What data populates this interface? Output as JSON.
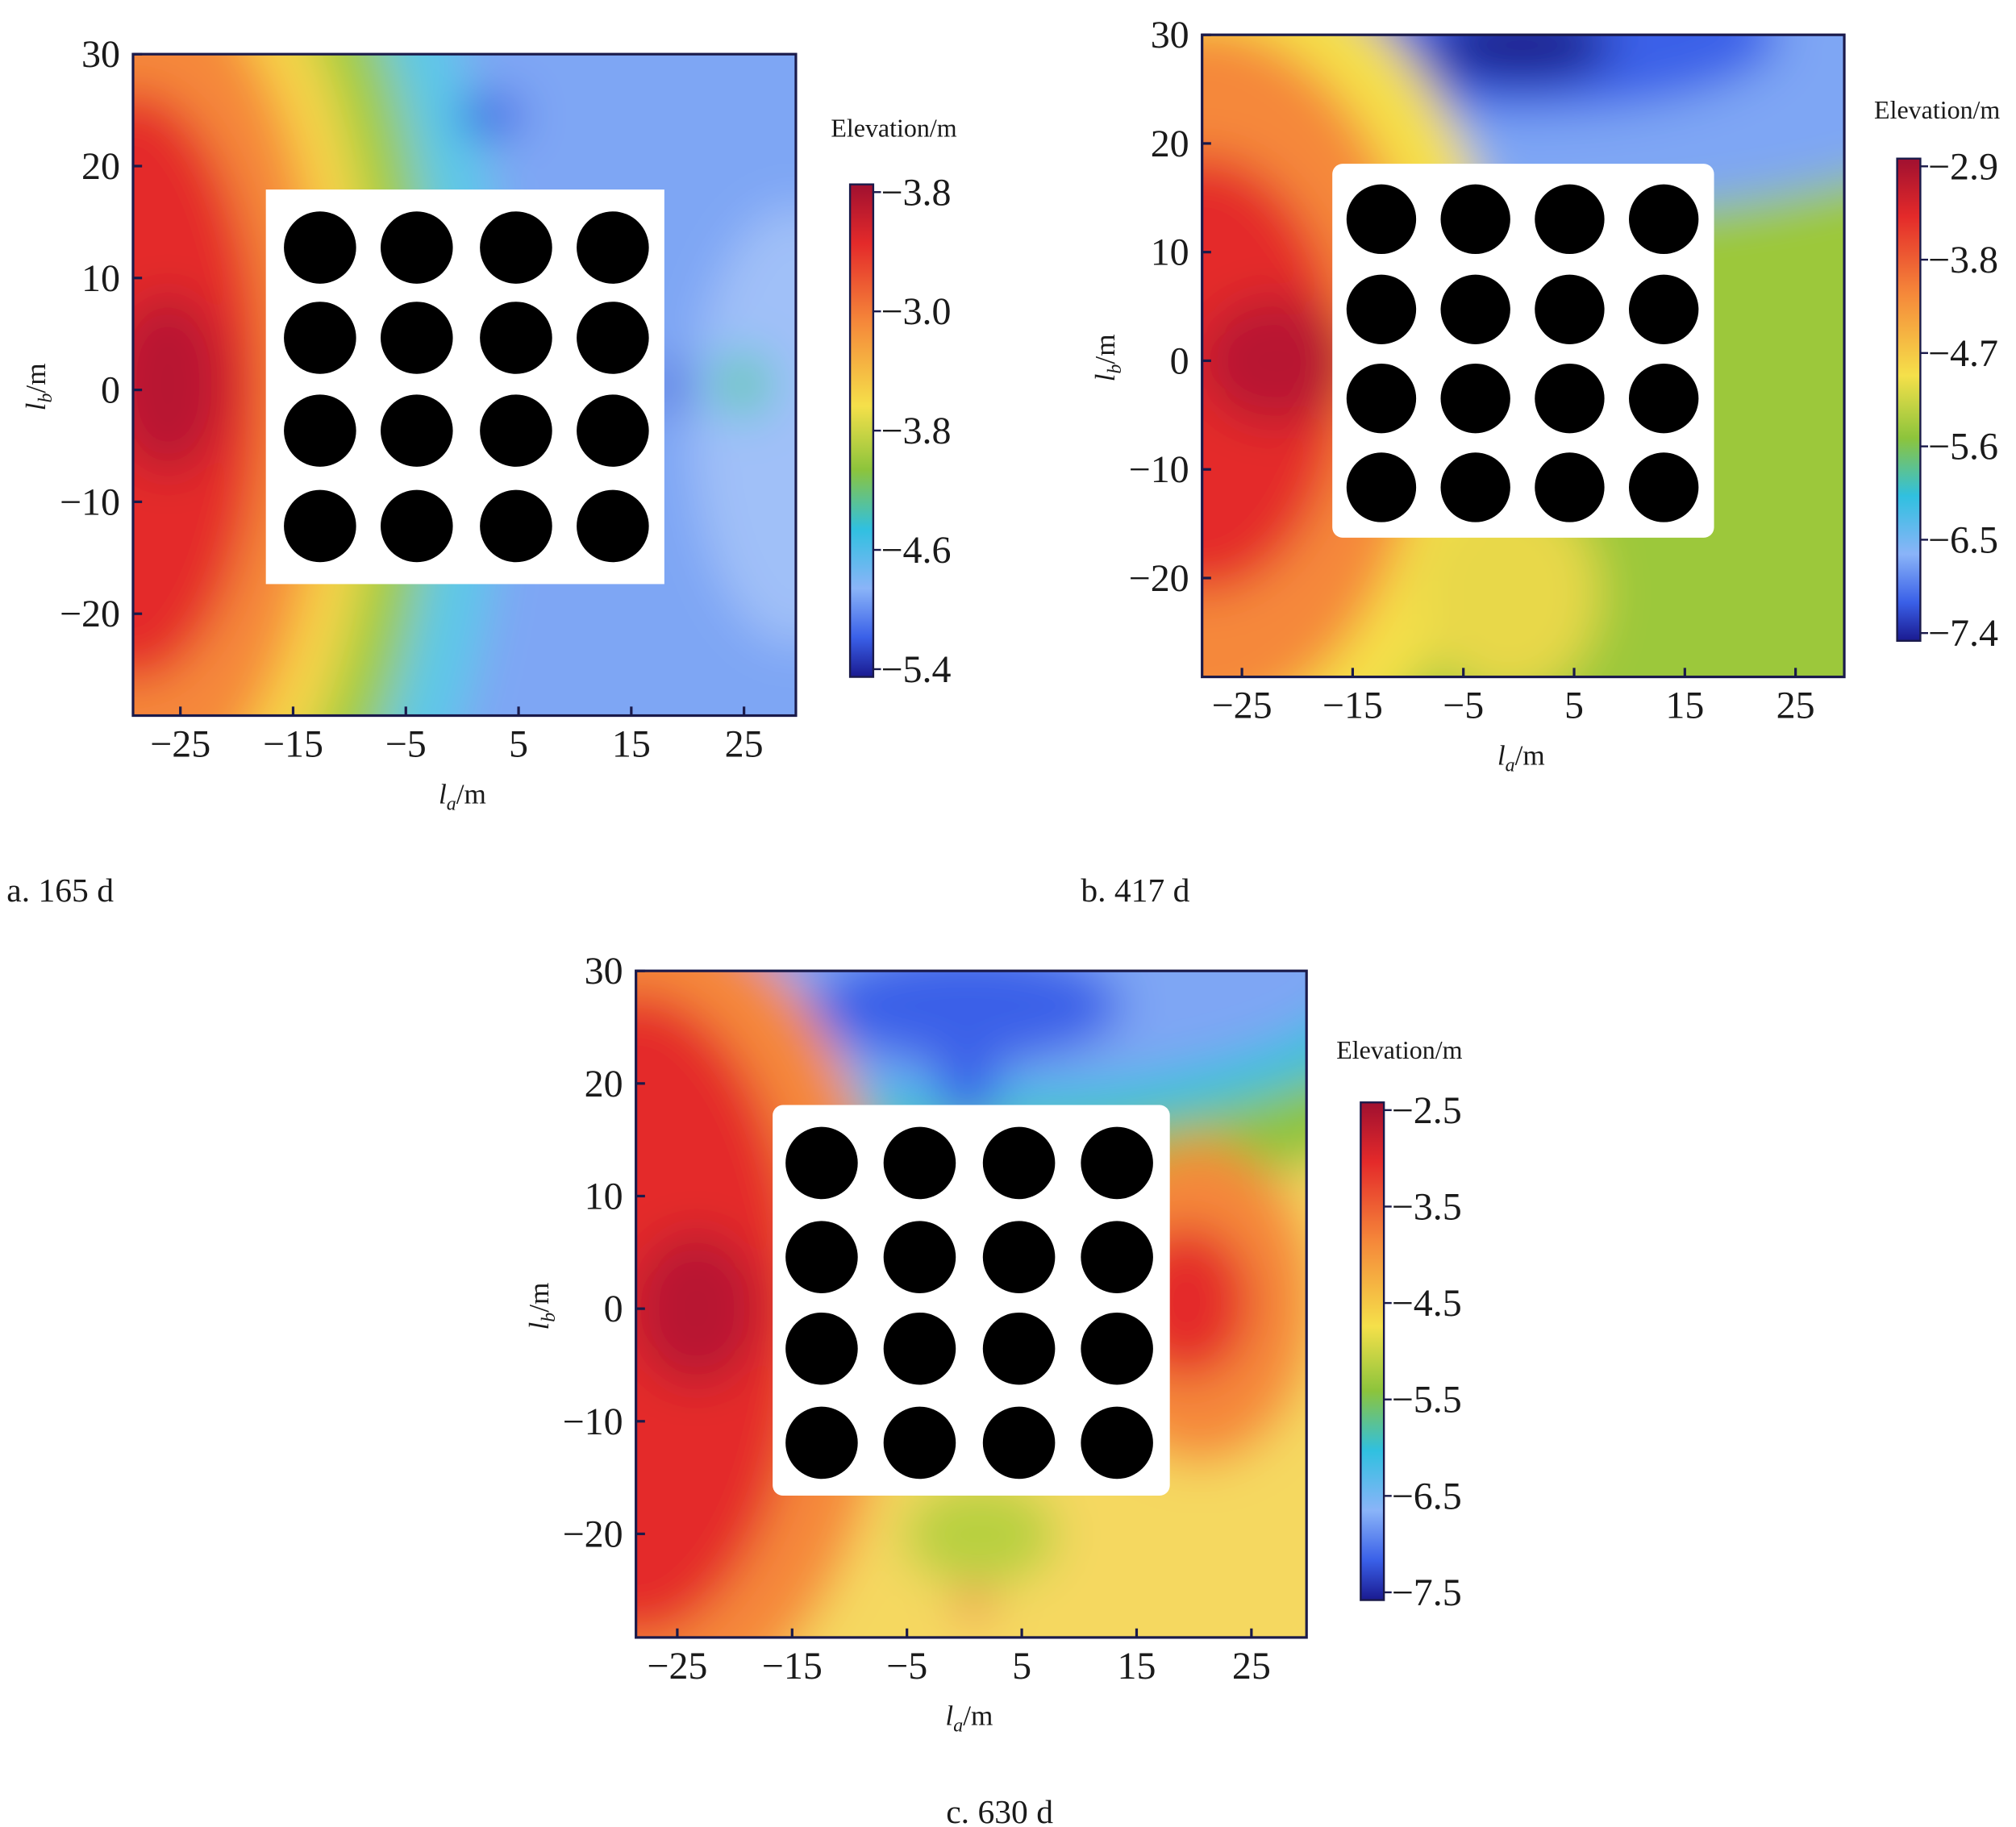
{
  "chart_data": [
    {
      "type": "contour",
      "caption": "a. 165 d",
      "colorbar_title": "Elevation/m",
      "colorbar_labels": [
        "−3.8",
        "−3.0",
        "−3.8",
        "−4.6",
        "−5.4"
      ],
      "x_label": {
        "symbol": "l",
        "subscript": "a",
        "unit": "/m"
      },
      "y_label": {
        "symbol": "l",
        "subscript": "b",
        "unit": "/m"
      },
      "xlim": [
        -29.2,
        29.6
      ],
      "ylim": [
        -29.1,
        30
      ],
      "xticks": [
        {
          "value": -25,
          "label": "−25"
        },
        {
          "value": -15,
          "label": "−15"
        },
        {
          "value": -5,
          "label": "−5"
        },
        5,
        15,
        25
      ],
      "yticks": [
        30,
        20,
        10,
        0,
        {
          "value": -10,
          "label": "−10"
        },
        {
          "value": -20,
          "label": "−20"
        }
      ]
    },
    {
      "type": "contour",
      "caption": "b. 417 d",
      "colorbar_title": "Elevation/m",
      "colorbar_labels": [
        "−2.9",
        "−3.8",
        "−4.7",
        "−5.6",
        "−6.5",
        "−7.4"
      ],
      "x_label": {
        "symbol": "l",
        "subscript": "a",
        "unit": "/m"
      },
      "y_label": {
        "symbol": "l",
        "subscript": "b",
        "unit": "/m"
      },
      "xlim": [
        -28.6,
        29.4
      ],
      "ylim": [
        -29.1,
        30
      ],
      "xticks": [
        {
          "value": -25,
          "label": "−25"
        },
        {
          "value": -15,
          "label": "−15"
        },
        {
          "value": -5,
          "label": "−5"
        },
        5,
        15,
        25
      ],
      "yticks": [
        30,
        20,
        10,
        0,
        {
          "value": -10,
          "label": "−10"
        },
        {
          "value": -20,
          "label": "−20"
        }
      ]
    },
    {
      "type": "contour",
      "caption": "c. 630 d",
      "colorbar_title": "Elevation/m",
      "colorbar_labels": [
        "−2.5",
        "−3.5",
        "−4.5",
        "−5.5",
        "−6.5",
        "−7.5"
      ],
      "x_label": {
        "symbol": "l",
        "subscript": "a",
        "unit": "/m"
      },
      "y_label": {
        "symbol": "l",
        "subscript": "b",
        "unit": "/m"
      },
      "xlim": [
        -28.6,
        29.8
      ],
      "ylim": [
        -29.2,
        30
      ],
      "xticks": [
        {
          "value": -25,
          "label": "−25"
        },
        {
          "value": -15,
          "label": "−15"
        },
        {
          "value": -5,
          "label": "−5"
        },
        5,
        15,
        25
      ],
      "yticks": [
        30,
        20,
        10,
        0,
        {
          "value": -10,
          "label": "−10"
        },
        {
          "value": -20,
          "label": "−20"
        }
      ]
    }
  ]
}
